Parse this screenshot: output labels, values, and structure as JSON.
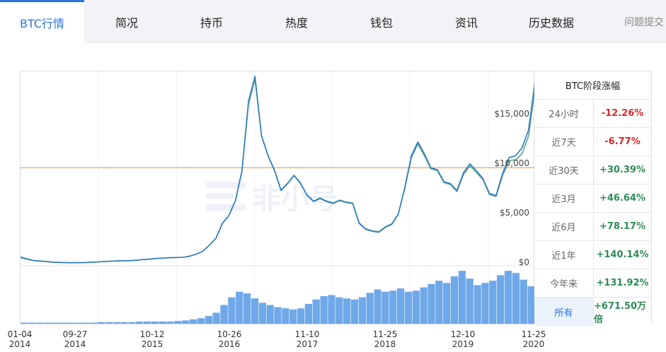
{
  "tabs": [
    {
      "label": "BTC行情",
      "active": true
    },
    {
      "label": "简况"
    },
    {
      "label": "持币"
    },
    {
      "label": "热度"
    },
    {
      "label": "钱包"
    },
    {
      "label": "资讯"
    },
    {
      "label": "历史数据"
    },
    {
      "label": "问题提交"
    }
  ],
  "watermark": "非小号",
  "chart_data": {
    "type": "line",
    "title": "",
    "y_tick_labels": [
      "$15,000",
      "$10,000",
      "$5,000",
      "$0"
    ],
    "y_ticks": [
      15000,
      10000,
      5000,
      0
    ],
    "ylim": [
      0,
      19500
    ],
    "reference_line": 9800,
    "x_tick_labels": [
      {
        "date": "01-04",
        "year": "2014"
      },
      {
        "date": "09-27",
        "year": "2014"
      },
      {
        "date": "10-12",
        "year": "2015"
      },
      {
        "date": "10-26",
        "year": "2016"
      },
      {
        "date": "11-10",
        "year": "2017"
      },
      {
        "date": "11-25",
        "year": "2018"
      },
      {
        "date": "12-10",
        "year": "2019"
      },
      {
        "date": "11-25",
        "year": "2020"
      }
    ],
    "series": [
      {
        "color": "#2e7bc4",
        "values": [
          760,
          600,
          450,
          400,
          350,
          280,
          260,
          240,
          230,
          240,
          250,
          280,
          320,
          360,
          390,
          420,
          430,
          450,
          500,
          560,
          610,
          680,
          700,
          740,
          760,
          780,
          900,
          1100,
          1400,
          2000,
          2700,
          4200,
          5000,
          6500,
          9500,
          16500,
          19000,
          13000,
          11000,
          9500,
          7500,
          8200,
          9000,
          8200,
          7000,
          6400,
          6700,
          6400,
          6200,
          6500,
          6300,
          6200,
          4200,
          3600,
          3400,
          3300,
          3800,
          4100,
          5100,
          7800,
          11000,
          12400,
          11200,
          9800,
          9600,
          8400,
          8200,
          7500,
          9300,
          10200,
          9500,
          8700,
          7200,
          7000,
          9200,
          10800,
          11000,
          11800,
          13600,
          18500
        ]
      },
      {
        "color": "#5aa88a",
        "values": [
          820,
          640,
          470,
          410,
          360,
          290,
          270,
          250,
          240,
          245,
          255,
          285,
          325,
          365,
          395,
          425,
          435,
          455,
          505,
          565,
          615,
          685,
          705,
          745,
          765,
          785,
          905,
          1105,
          1405,
          2005,
          2705,
          4205,
          5005,
          6505,
          9505,
          16200,
          18700,
          13050,
          11050,
          9550,
          7550,
          8250,
          9050,
          8250,
          7050,
          6450,
          6750,
          6450,
          6250,
          6550,
          6350,
          6250,
          4250,
          3650,
          3450,
          3350,
          3850,
          4150,
          5150,
          7700,
          10800,
          12200,
          11000,
          9700,
          9500,
          8300,
          8100,
          7400,
          9100,
          10000,
          9300,
          8600,
          7100,
          6900,
          9000,
          10500,
          10600,
          11200,
          13000,
          17800
        ]
      }
    ],
    "volume_color": "#6fa8e8",
    "volume_ylim": [
      0,
      100
    ],
    "volume": [
      2,
      2,
      2,
      2,
      2,
      2,
      2,
      2,
      2,
      2,
      3,
      3,
      3,
      3,
      3,
      4,
      4,
      4,
      4,
      4,
      5,
      6,
      8,
      10,
      14,
      20,
      34,
      48,
      58,
      55,
      46,
      38,
      34,
      30,
      28,
      26,
      28,
      36,
      44,
      50,
      52,
      48,
      46,
      44,
      48,
      56,
      62,
      58,
      60,
      64,
      58,
      60,
      66,
      72,
      78,
      74,
      86,
      96,
      82,
      70,
      74,
      78,
      88,
      96,
      92,
      80,
      68
    ]
  },
  "perf_table": {
    "title": "BTC阶段涨幅",
    "rows": [
      {
        "label": "24小时",
        "value": "-12.26%",
        "color": "#d12a2a"
      },
      {
        "label": "近7天",
        "value": "-6.77%",
        "color": "#d12a2a"
      },
      {
        "label": "近30天",
        "value": "+30.39%",
        "color": "#2e8b57"
      },
      {
        "label": "近3月",
        "value": "+46.64%",
        "color": "#2e8b57"
      },
      {
        "label": "近6月",
        "value": "+78.17%",
        "color": "#2e8b57"
      },
      {
        "label": "近1年",
        "value": "+140.14%",
        "color": "#2e8b57"
      },
      {
        "label": "今年来",
        "value": "+131.92%",
        "color": "#2e8b57"
      },
      {
        "label": "所有",
        "value": "+671.50万倍",
        "color": "#2e8b57",
        "selected": true
      }
    ]
  }
}
